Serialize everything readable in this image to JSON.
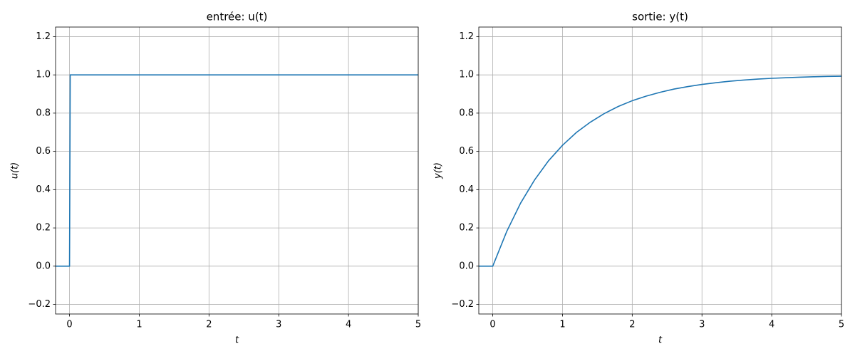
{
  "chart_data": [
    {
      "type": "line",
      "title": "entrée: u(t)",
      "x_label": "t",
      "y_label": "u(t)",
      "x": [
        -0.2,
        0,
        0.01,
        5
      ],
      "values": [
        0,
        0,
        1,
        1
      ],
      "color": "#1f77b4",
      "xlim": [
        -0.2,
        5
      ],
      "ylim": [
        -0.25,
        1.25
      ],
      "xticks": [
        0,
        1,
        2,
        3,
        4,
        5
      ],
      "yticks": [
        {
          "value": -0.2,
          "label": "−0.2"
        },
        {
          "value": 0,
          "label": "0.0"
        },
        0.2,
        0.4,
        0.6,
        0.8,
        {
          "value": 1,
          "label": "1.0"
        },
        1.2
      ],
      "grid": true
    },
    {
      "type": "line",
      "title": "sortie: y(t)",
      "x_label": "t",
      "y_label": "y(t)",
      "x": [
        -0.2,
        0,
        0.2,
        0.4,
        0.6,
        0.8,
        1.0,
        1.2,
        1.4,
        1.6,
        1.8,
        2.0,
        2.2,
        2.4,
        2.6,
        2.8,
        3.0,
        3.2,
        3.4,
        3.6,
        3.8,
        4.0,
        4.2,
        4.4,
        4.6,
        4.8,
        5.0
      ],
      "values": [
        0,
        0,
        0.181,
        0.33,
        0.451,
        0.551,
        0.632,
        0.699,
        0.753,
        0.798,
        0.835,
        0.865,
        0.889,
        0.909,
        0.926,
        0.939,
        0.95,
        0.959,
        0.967,
        0.973,
        0.978,
        0.982,
        0.985,
        0.988,
        0.99,
        0.992,
        0.993
      ],
      "color": "#1f77b4",
      "xlim": [
        -0.2,
        5
      ],
      "ylim": [
        -0.25,
        1.25
      ],
      "xticks": [
        0,
        1,
        2,
        3,
        4,
        5
      ],
      "yticks": [
        {
          "value": -0.2,
          "label": "−0.2"
        },
        {
          "value": 0,
          "label": "0.0"
        },
        0.2,
        0.4,
        0.6,
        0.8,
        {
          "value": 1,
          "label": "1.0"
        },
        1.2
      ],
      "grid": true
    }
  ]
}
